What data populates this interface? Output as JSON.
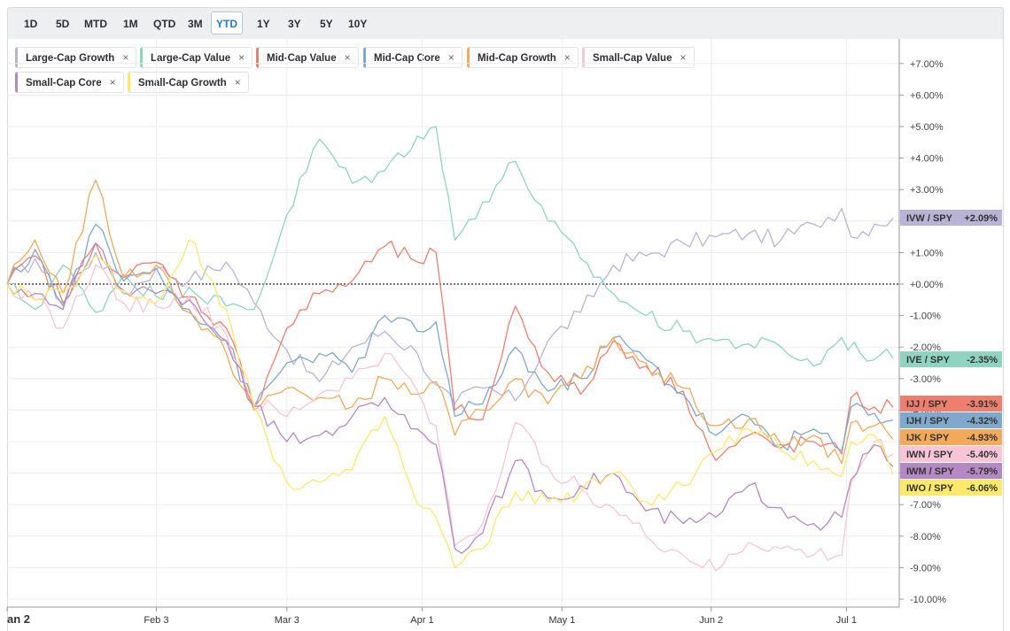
{
  "timeframes": [
    "1D",
    "5D",
    "MTD",
    "1M",
    "QTD",
    "3M",
    "YTD",
    "1Y",
    "3Y",
    "5Y",
    "10Y"
  ],
  "active_timeframe": "YTD",
  "chips": [
    {
      "label": "Large-Cap Growth",
      "color": "#b9b3d6"
    },
    {
      "label": "Large-Cap Value",
      "color": "#8fd3c1"
    },
    {
      "label": "Mid-Cap Value",
      "color": "#ee7f6f"
    },
    {
      "label": "Mid-Cap Core",
      "color": "#7fa8cc"
    },
    {
      "label": "Mid-Cap Growth",
      "color": "#f3a95a"
    },
    {
      "label": "Small-Cap Value",
      "color": "#f7c6d6"
    },
    {
      "label": "Small-Cap Core",
      "color": "#b489c4"
    },
    {
      "label": "Small-Cap Growth",
      "color": "#fbe96c"
    }
  ],
  "chart_data": {
    "type": "line",
    "x_ticks": [
      "an 2",
      "Feb 3",
      "Mar 3",
      "Apr 1",
      "May 1",
      "Jun 2",
      "Jul 1"
    ],
    "x_range": [
      "2025-01-02",
      "2025-07-11"
    ],
    "ylim": [
      -10,
      7.5
    ],
    "y_ticks": [
      "+7.00%",
      "+6.00%",
      "+5.00%",
      "+4.00%",
      "+3.00%",
      "+2.00%",
      "+1.00%",
      "+0.00%",
      "-1.00%",
      "-2.00%",
      "-3.00%",
      "-4.00%",
      "-5.00%",
      "-6.00%",
      "-7.00%",
      "-8.00%",
      "-9.00%",
      "-10.00%"
    ],
    "zero_line": true,
    "grid": true,
    "series": [
      {
        "name": "Large-Cap Growth",
        "ticker": "IVW / SPY",
        "last": "+2.09%",
        "last_value": 2.09,
        "color": "#b9b3d6",
        "label_text": "#333333",
        "points": [
          [
            "2025-01-02",
            0
          ],
          [
            "2025-01-08",
            0.8
          ],
          [
            "2025-01-14",
            -0.6
          ],
          [
            "2025-01-21",
            1.0
          ],
          [
            "2025-01-27",
            -0.3
          ],
          [
            "2025-02-03",
            0.5
          ],
          [
            "2025-02-10",
            0.1
          ],
          [
            "2025-02-18",
            0.7
          ],
          [
            "2025-02-24",
            -0.6
          ],
          [
            "2025-03-03",
            -2.1
          ],
          [
            "2025-03-10",
            -3.1
          ],
          [
            "2025-03-17",
            -2.0
          ],
          [
            "2025-03-24",
            -1.5
          ],
          [
            "2025-03-31",
            -2.2
          ],
          [
            "2025-04-04",
            -3.2
          ],
          [
            "2025-04-08",
            -3.8
          ],
          [
            "2025-04-14",
            -3.3
          ],
          [
            "2025-04-21",
            -3.7
          ],
          [
            "2025-04-28",
            -1.8
          ],
          [
            "2025-05-05",
            -0.9
          ],
          [
            "2025-05-12",
            0.6
          ],
          [
            "2025-05-19",
            0.9
          ],
          [
            "2025-05-27",
            1.3
          ],
          [
            "2025-06-03",
            1.5
          ],
          [
            "2025-06-10",
            1.6
          ],
          [
            "2025-06-17",
            1.4
          ],
          [
            "2025-06-24",
            1.9
          ],
          [
            "2025-06-30",
            2.4
          ],
          [
            "2025-07-02",
            1.5
          ],
          [
            "2025-07-07",
            1.9
          ],
          [
            "2025-07-11",
            2.09
          ]
        ]
      },
      {
        "name": "Large-Cap Value",
        "ticker": "IVE / SPY",
        "last": "-2.35%",
        "last_value": -2.35,
        "color": "#8fd3c1",
        "label_text": "#333333",
        "points": [
          [
            "2025-01-02",
            0
          ],
          [
            "2025-01-08",
            -0.8
          ],
          [
            "2025-01-14",
            0.6
          ],
          [
            "2025-01-21",
            -0.9
          ],
          [
            "2025-01-27",
            0.3
          ],
          [
            "2025-02-03",
            -0.4
          ],
          [
            "2025-02-10",
            -0.1
          ],
          [
            "2025-02-18",
            -0.7
          ],
          [
            "2025-02-24",
            -0.8
          ],
          [
            "2025-03-03",
            2.2
          ],
          [
            "2025-03-10",
            4.6
          ],
          [
            "2025-03-17",
            3.2
          ],
          [
            "2025-03-24",
            3.6
          ],
          [
            "2025-03-31",
            4.7
          ],
          [
            "2025-04-04",
            5.0
          ],
          [
            "2025-04-08",
            1.4
          ],
          [
            "2025-04-14",
            2.6
          ],
          [
            "2025-04-21",
            3.9
          ],
          [
            "2025-04-28",
            2.0
          ],
          [
            "2025-05-05",
            0.8
          ],
          [
            "2025-05-12",
            -0.3
          ],
          [
            "2025-05-19",
            -1.0
          ],
          [
            "2025-05-27",
            -1.5
          ],
          [
            "2025-06-03",
            -1.8
          ],
          [
            "2025-06-10",
            -1.9
          ],
          [
            "2025-06-17",
            -2.0
          ],
          [
            "2025-06-24",
            -2.6
          ],
          [
            "2025-06-30",
            -1.7
          ],
          [
            "2025-07-04",
            -2.2
          ],
          [
            "2025-07-11",
            -2.35
          ]
        ]
      },
      {
        "name": "Mid-Cap Value",
        "ticker": "IJJ / SPY",
        "last": "-3.91%",
        "last_value": -3.91,
        "color": "#ee7f6f",
        "label_text": "#333333",
        "points": [
          [
            "2025-01-02",
            0
          ],
          [
            "2025-01-08",
            0.9
          ],
          [
            "2025-01-14",
            -0.6
          ],
          [
            "2025-01-21",
            1.3
          ],
          [
            "2025-01-27",
            0.2
          ],
          [
            "2025-02-03",
            0.7
          ],
          [
            "2025-02-10",
            -0.4
          ],
          [
            "2025-02-18",
            -1.4
          ],
          [
            "2025-02-24",
            -3.9
          ],
          [
            "2025-03-03",
            -1.4
          ],
          [
            "2025-03-10",
            -0.3
          ],
          [
            "2025-03-17",
            0.1
          ],
          [
            "2025-03-24",
            1.2
          ],
          [
            "2025-03-31",
            0.7
          ],
          [
            "2025-04-04",
            1.0
          ],
          [
            "2025-04-08",
            -4.0
          ],
          [
            "2025-04-14",
            -4.3
          ],
          [
            "2025-04-21",
            -0.7
          ],
          [
            "2025-04-28",
            -2.8
          ],
          [
            "2025-05-05",
            -3.5
          ],
          [
            "2025-05-12",
            -1.8
          ],
          [
            "2025-05-19",
            -2.6
          ],
          [
            "2025-05-27",
            -3.4
          ],
          [
            "2025-06-03",
            -5.6
          ],
          [
            "2025-06-10",
            -4.8
          ],
          [
            "2025-06-17",
            -5.2
          ],
          [
            "2025-06-24",
            -5.0
          ],
          [
            "2025-06-30",
            -5.4
          ],
          [
            "2025-07-02",
            -3.6
          ],
          [
            "2025-07-07",
            -3.9
          ],
          [
            "2025-07-11",
            -3.91
          ]
        ]
      },
      {
        "name": "Mid-Cap Core",
        "ticker": "IJH / SPY",
        "last": "-4.32%",
        "last_value": -4.32,
        "color": "#7fa8cc",
        "label_text": "#333333",
        "points": [
          [
            "2025-01-02",
            0
          ],
          [
            "2025-01-08",
            1.1
          ],
          [
            "2025-01-14",
            -0.7
          ],
          [
            "2025-01-21",
            1.9
          ],
          [
            "2025-01-27",
            0.1
          ],
          [
            "2025-02-03",
            0.5
          ],
          [
            "2025-02-10",
            -0.8
          ],
          [
            "2025-02-18",
            -1.8
          ],
          [
            "2025-02-24",
            -3.9
          ],
          [
            "2025-03-03",
            -2.5
          ],
          [
            "2025-03-10",
            -2.2
          ],
          [
            "2025-03-17",
            -2.8
          ],
          [
            "2025-03-24",
            -1.0
          ],
          [
            "2025-03-31",
            -1.5
          ],
          [
            "2025-04-04",
            -1.2
          ],
          [
            "2025-04-08",
            -4.2
          ],
          [
            "2025-04-14",
            -3.8
          ],
          [
            "2025-04-21",
            -2.0
          ],
          [
            "2025-04-28",
            -3.4
          ],
          [
            "2025-05-05",
            -3.0
          ],
          [
            "2025-05-12",
            -1.7
          ],
          [
            "2025-05-19",
            -2.4
          ],
          [
            "2025-05-27",
            -3.5
          ],
          [
            "2025-06-03",
            -4.8
          ],
          [
            "2025-06-10",
            -4.2
          ],
          [
            "2025-06-17",
            -5.1
          ],
          [
            "2025-06-24",
            -4.6
          ],
          [
            "2025-06-30",
            -5.3
          ],
          [
            "2025-07-02",
            -3.9
          ],
          [
            "2025-07-07",
            -4.1
          ],
          [
            "2025-07-11",
            -4.32
          ]
        ]
      },
      {
        "name": "Mid-Cap Growth",
        "ticker": "IJK / SPY",
        "last": "-4.93%",
        "last_value": -4.93,
        "color": "#f3a95a",
        "label_text": "#333333",
        "points": [
          [
            "2025-01-02",
            0
          ],
          [
            "2025-01-08",
            1.4
          ],
          [
            "2025-01-14",
            -0.3
          ],
          [
            "2025-01-21",
            3.3
          ],
          [
            "2025-01-27",
            0.2
          ],
          [
            "2025-02-03",
            0.6
          ],
          [
            "2025-02-10",
            -0.9
          ],
          [
            "2025-02-18",
            -2.2
          ],
          [
            "2025-02-24",
            -4.0
          ],
          [
            "2025-03-03",
            -3.3
          ],
          [
            "2025-03-10",
            -3.6
          ],
          [
            "2025-03-17",
            -3.9
          ],
          [
            "2025-03-24",
            -3.0
          ],
          [
            "2025-03-31",
            -3.5
          ],
          [
            "2025-04-04",
            -3.1
          ],
          [
            "2025-04-08",
            -4.8
          ],
          [
            "2025-04-14",
            -4.0
          ],
          [
            "2025-04-21",
            -3.0
          ],
          [
            "2025-04-28",
            -3.8
          ],
          [
            "2025-05-05",
            -3.0
          ],
          [
            "2025-05-12",
            -1.7
          ],
          [
            "2025-05-19",
            -2.5
          ],
          [
            "2025-05-27",
            -3.3
          ],
          [
            "2025-06-03",
            -4.5
          ],
          [
            "2025-06-10",
            -4.3
          ],
          [
            "2025-06-17",
            -5.1
          ],
          [
            "2025-06-24",
            -4.8
          ],
          [
            "2025-06-30",
            -5.7
          ],
          [
            "2025-07-02",
            -4.4
          ],
          [
            "2025-07-07",
            -4.5
          ],
          [
            "2025-07-11",
            -4.93
          ]
        ]
      },
      {
        "name": "Small-Cap Value",
        "ticker": "IWN / SPY",
        "last": "-5.40%",
        "last_value": -5.4,
        "color": "#f7c6d6",
        "label_text": "#333333",
        "points": [
          [
            "2025-01-02",
            0
          ],
          [
            "2025-01-08",
            -0.5
          ],
          [
            "2025-01-14",
            -1.4
          ],
          [
            "2025-01-21",
            0.6
          ],
          [
            "2025-01-27",
            -0.6
          ],
          [
            "2025-02-03",
            -0.7
          ],
          [
            "2025-02-10",
            -0.4
          ],
          [
            "2025-02-18",
            -1.6
          ],
          [
            "2025-02-24",
            -3.8
          ],
          [
            "2025-03-03",
            -4.2
          ],
          [
            "2025-03-10",
            -3.5
          ],
          [
            "2025-03-17",
            -3.0
          ],
          [
            "2025-03-24",
            -2.2
          ],
          [
            "2025-03-31",
            -3.4
          ],
          [
            "2025-04-04",
            -4.5
          ],
          [
            "2025-04-08",
            -8.3
          ],
          [
            "2025-04-14",
            -7.6
          ],
          [
            "2025-04-21",
            -4.4
          ],
          [
            "2025-04-28",
            -5.8
          ],
          [
            "2025-05-05",
            -6.5
          ],
          [
            "2025-05-12",
            -7.1
          ],
          [
            "2025-05-19",
            -8.0
          ],
          [
            "2025-05-27",
            -8.6
          ],
          [
            "2025-06-03",
            -9.1
          ],
          [
            "2025-06-10",
            -8.2
          ],
          [
            "2025-06-17",
            -8.4
          ],
          [
            "2025-06-24",
            -8.6
          ],
          [
            "2025-06-30",
            -8.6
          ],
          [
            "2025-07-02",
            -6.3
          ],
          [
            "2025-07-07",
            -5.0
          ],
          [
            "2025-07-11",
            -5.4
          ]
        ]
      },
      {
        "name": "Small-Cap Core",
        "ticker": "IWM / SPY",
        "last": "-5.79%",
        "last_value": -5.79,
        "color": "#b489c4",
        "label_text": "#333333",
        "points": [
          [
            "2025-01-02",
            0
          ],
          [
            "2025-01-08",
            -0.3
          ],
          [
            "2025-01-14",
            -0.8
          ],
          [
            "2025-01-21",
            1.3
          ],
          [
            "2025-01-27",
            -0.2
          ],
          [
            "2025-02-03",
            -0.3
          ],
          [
            "2025-02-10",
            -0.5
          ],
          [
            "2025-02-18",
            -1.8
          ],
          [
            "2025-02-24",
            -3.9
          ],
          [
            "2025-03-03",
            -5.0
          ],
          [
            "2025-03-10",
            -4.8
          ],
          [
            "2025-03-17",
            -4.2
          ],
          [
            "2025-03-24",
            -3.6
          ],
          [
            "2025-03-31",
            -4.6
          ],
          [
            "2025-04-04",
            -5.1
          ],
          [
            "2025-04-08",
            -8.4
          ],
          [
            "2025-04-14",
            -7.9
          ],
          [
            "2025-04-21",
            -5.6
          ],
          [
            "2025-04-28",
            -6.8
          ],
          [
            "2025-05-05",
            -6.4
          ],
          [
            "2025-05-12",
            -6.0
          ],
          [
            "2025-05-19",
            -7.2
          ],
          [
            "2025-05-27",
            -7.6
          ],
          [
            "2025-06-03",
            -7.4
          ],
          [
            "2025-06-10",
            -6.4
          ],
          [
            "2025-06-17",
            -7.1
          ],
          [
            "2025-06-24",
            -7.6
          ],
          [
            "2025-06-30",
            -7.4
          ],
          [
            "2025-07-02",
            -6.2
          ],
          [
            "2025-07-07",
            -5.1
          ],
          [
            "2025-07-11",
            -5.79
          ]
        ]
      },
      {
        "name": "Small-Cap Growth",
        "ticker": "IWO / SPY",
        "last": "-6.06%",
        "last_value": -6.06,
        "color": "#fbe96c",
        "label_text": "#333333",
        "points": [
          [
            "2025-01-02",
            0
          ],
          [
            "2025-01-08",
            -0.5
          ],
          [
            "2025-01-14",
            -0.3
          ],
          [
            "2025-01-21",
            0.9
          ],
          [
            "2025-01-27",
            -0.2
          ],
          [
            "2025-02-03",
            -0.6
          ],
          [
            "2025-02-10",
            1.4
          ],
          [
            "2025-02-18",
            -0.8
          ],
          [
            "2025-02-24",
            -3.9
          ],
          [
            "2025-03-03",
            -6.3
          ],
          [
            "2025-03-10",
            -6.3
          ],
          [
            "2025-03-17",
            -5.9
          ],
          [
            "2025-03-24",
            -4.2
          ],
          [
            "2025-03-31",
            -7.0
          ],
          [
            "2025-04-04",
            -7.4
          ],
          [
            "2025-04-08",
            -9.0
          ],
          [
            "2025-04-14",
            -8.4
          ],
          [
            "2025-04-21",
            -6.6
          ],
          [
            "2025-04-28",
            -6.9
          ],
          [
            "2025-05-05",
            -6.6
          ],
          [
            "2025-05-12",
            -6.0
          ],
          [
            "2025-05-19",
            -6.9
          ],
          [
            "2025-05-27",
            -6.4
          ],
          [
            "2025-06-03",
            -5.3
          ],
          [
            "2025-06-10",
            -4.6
          ],
          [
            "2025-06-17",
            -5.3
          ],
          [
            "2025-06-24",
            -5.6
          ],
          [
            "2025-06-30",
            -6.1
          ],
          [
            "2025-07-02",
            -5.0
          ],
          [
            "2025-07-07",
            -4.8
          ],
          [
            "2025-07-11",
            -6.06
          ]
        ]
      }
    ]
  }
}
